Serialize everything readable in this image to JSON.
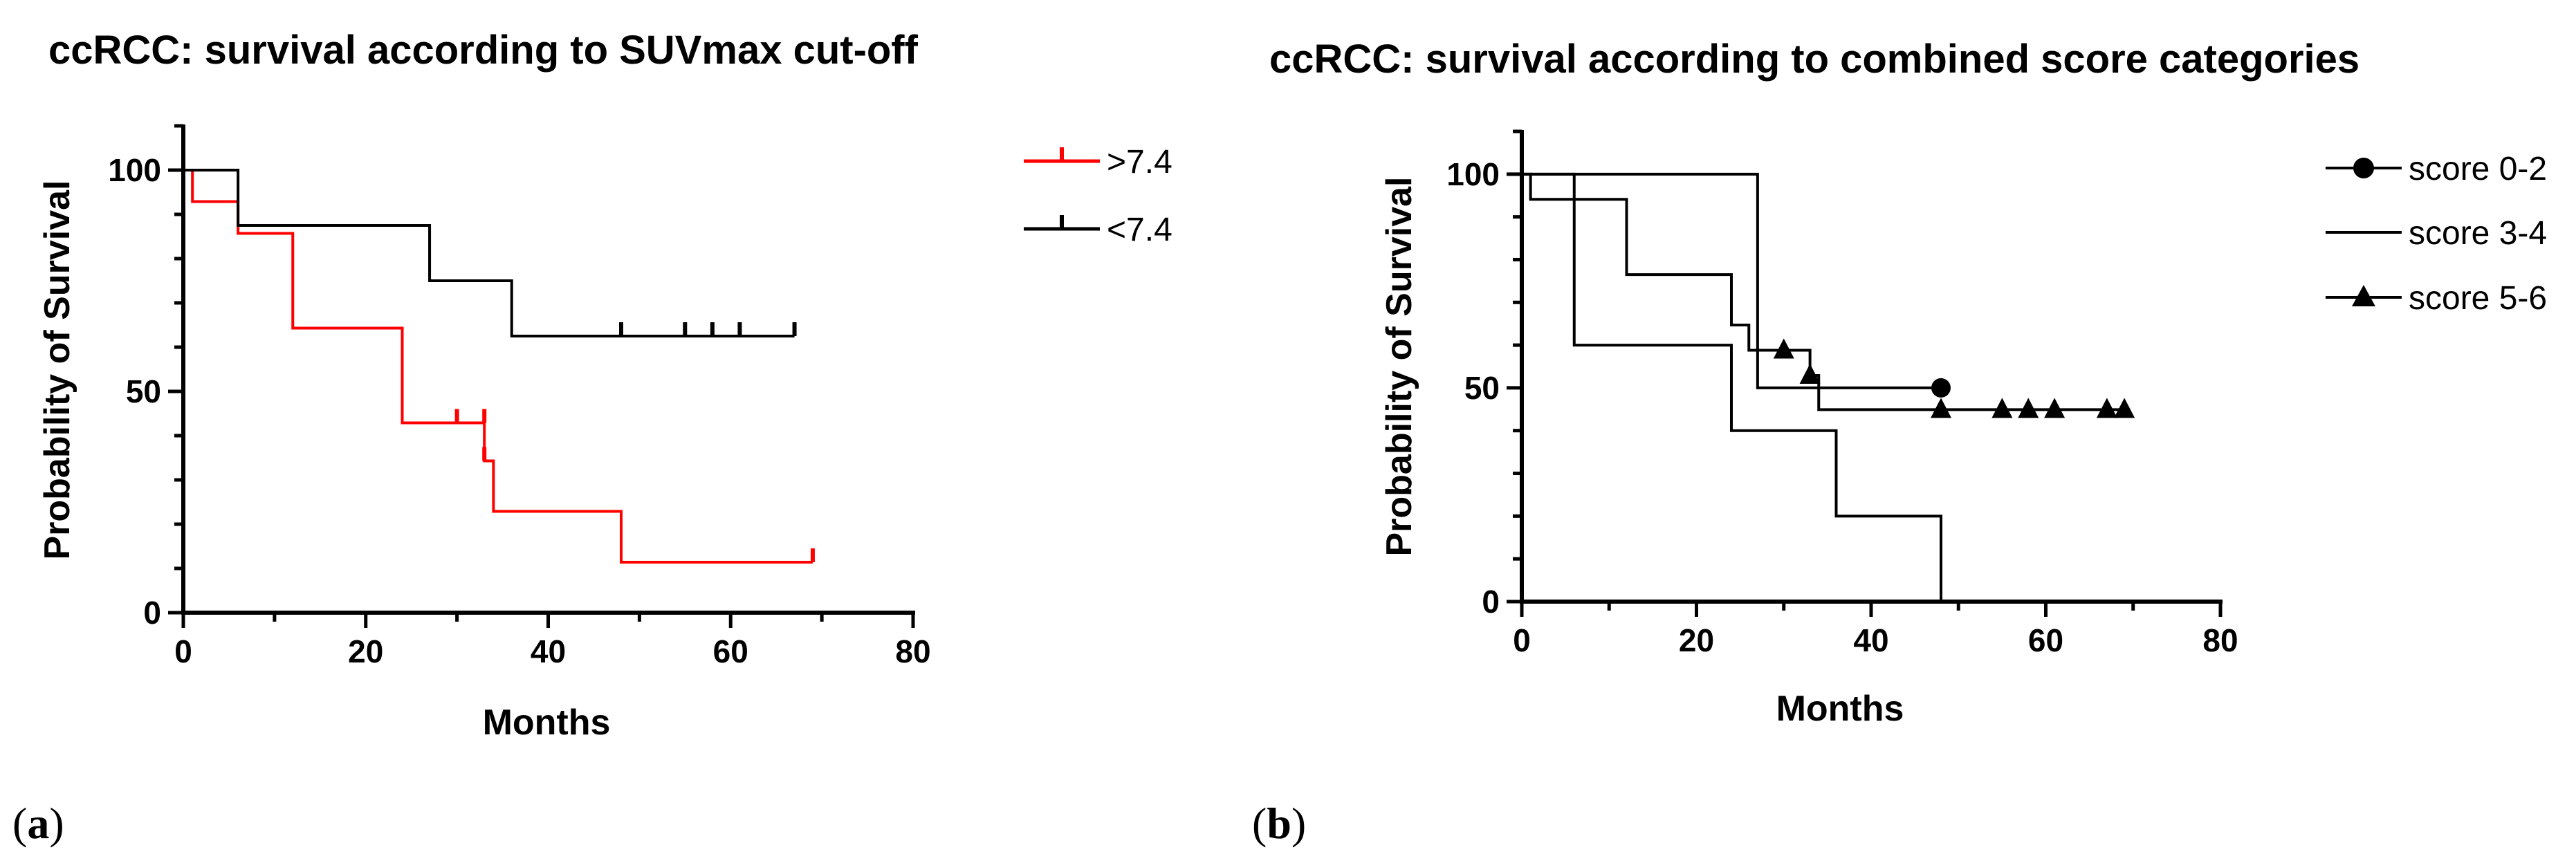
{
  "panels": [
    {
      "label_open": "(",
      "label_letter": "a",
      "label_close": ")"
    },
    {
      "label_open": "(",
      "label_letter": "b",
      "label_close": ")"
    }
  ],
  "chart_data": [
    {
      "type": "line",
      "subtype": "kaplan-meier",
      "title": "ccRCC: survival according to SUVmax cut-off",
      "xlabel": "Months",
      "ylabel": "Probability of Survival",
      "xlim": [
        0,
        80
      ],
      "ylim": [
        0,
        110
      ],
      "xticks": [
        0,
        20,
        40,
        60,
        80
      ],
      "yticks": [
        0,
        50,
        100
      ],
      "legend_position": "top-right",
      "series": [
        {
          "name": ">7.4",
          "color": "#ff0000",
          "marker": "tick",
          "steps": [
            [
              0,
              100
            ],
            [
              1,
              92.9
            ],
            [
              6,
              85.7
            ],
            [
              12,
              64.3
            ],
            [
              24,
              42.9
            ],
            [
              33,
              34.3
            ],
            [
              34,
              22.9
            ],
            [
              48,
              11.4
            ],
            [
              69,
              11.4
            ]
          ],
          "censored": [
            [
              30,
              42.9
            ],
            [
              33,
              42.9
            ],
            [
              33,
              34.3
            ],
            [
              69,
              11.4
            ]
          ]
        },
        {
          "name": "<7.4",
          "color": "#000000",
          "marker": "tick",
          "steps": [
            [
              0,
              100
            ],
            [
              6,
              87.5
            ],
            [
              27,
              75
            ],
            [
              36,
              62.5
            ],
            [
              67,
              62.5
            ]
          ],
          "censored": [
            [
              48,
              62.5
            ],
            [
              55,
              62.5
            ],
            [
              58,
              62.5
            ],
            [
              61,
              62.5
            ],
            [
              67,
              62.5
            ]
          ]
        }
      ]
    },
    {
      "type": "line",
      "subtype": "kaplan-meier",
      "title": "ccRCC: survival according to combined score categories",
      "xlabel": "Months",
      "ylabel": "Probability of Survival",
      "xlim": [
        0,
        80
      ],
      "ylim": [
        0,
        110
      ],
      "xticks": [
        0,
        20,
        40,
        60,
        80
      ],
      "yticks": [
        0,
        50,
        100
      ],
      "legend_position": "top-right",
      "series": [
        {
          "name": "score 0-2",
          "color": "#000000",
          "marker": "circle",
          "steps": [
            [
              0,
              100
            ],
            [
              27,
              100
            ],
            [
              27,
              50
            ],
            [
              48,
              50
            ]
          ],
          "censored": [
            [
              48,
              50
            ]
          ]
        },
        {
          "name": "score 3-4",
          "color": "#000000",
          "marker": "none",
          "steps": [
            [
              0,
              100
            ],
            [
              6,
              60
            ],
            [
              24,
              40
            ],
            [
              36,
              20
            ],
            [
              48,
              0
            ]
          ],
          "censored": []
        },
        {
          "name": "score 5-6",
          "color": "#000000",
          "marker": "triangle",
          "steps": [
            [
              0,
              100
            ],
            [
              1,
              94.1
            ],
            [
              12,
              76.5
            ],
            [
              24,
              64.7
            ],
            [
              26,
              58.8
            ],
            [
              33,
              52.9
            ],
            [
              34,
              44.9
            ],
            [
              69,
              44.9
            ]
          ],
          "censored": [
            [
              30,
              58.8
            ],
            [
              33,
              52.9
            ],
            [
              48,
              44.9
            ],
            [
              55,
              44.9
            ],
            [
              58,
              44.9
            ],
            [
              61,
              44.9
            ],
            [
              67,
              44.9
            ],
            [
              69,
              44.9
            ]
          ]
        }
      ]
    }
  ]
}
